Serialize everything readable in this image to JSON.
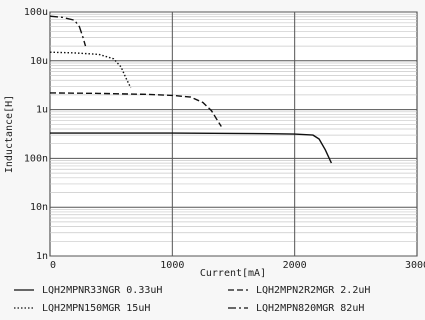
{
  "chart_data": {
    "type": "line",
    "xlabel": "Current[mA]",
    "ylabel": "Inductance[H]",
    "xlim": [
      0,
      3000
    ],
    "ylim": [
      "1n",
      "100u"
    ],
    "y_scale": "log",
    "grid": true,
    "legend_placement": "bottom",
    "x_ticks": [
      "0",
      "1000",
      "2000",
      "3000"
    ],
    "y_ticks": [
      "100u",
      "10u",
      "1u",
      "100n",
      "10n",
      "1n"
    ],
    "series": [
      {
        "name": "LQH2MPNR33NGR 0.33uH",
        "style": "solid",
        "x": [
          0,
          500,
          1000,
          1500,
          1800,
          2000,
          2150,
          2200,
          2250,
          2300
        ],
        "y": [
          3.3e-07,
          3.3e-07,
          3.3e-07,
          3.25e-07,
          3.2e-07,
          3.15e-07,
          3e-07,
          2.5e-07,
          1.5e-07,
          8e-08
        ]
      },
      {
        "name": "LQH2MPN2R2MGR 2.2uH",
        "style": "dashed",
        "x": [
          0,
          400,
          800,
          1000,
          1150,
          1250,
          1320,
          1360,
          1400
        ],
        "y": [
          2.2e-06,
          2.15e-06,
          2.05e-06,
          1.95e-06,
          1.8e-06,
          1.4e-06,
          9.5e-07,
          6.5e-07,
          4.5e-07
        ]
      },
      {
        "name": "LQH2MPN150MGR 15uH",
        "style": "dotted",
        "x": [
          0,
          200,
          400,
          520,
          580,
          620,
          660
        ],
        "y": [
          1.5e-05,
          1.45e-05,
          1.35e-05,
          1.1e-05,
          7.5e-06,
          4.5e-06,
          2.8e-06
        ]
      },
      {
        "name": "LQH2MPN820MGR 82uH",
        "style": "dashdot",
        "x": [
          0,
          100,
          200,
          240,
          270,
          290
        ],
        "y": [
          8.2e-05,
          7.8e-05,
          6.8e-05,
          5e-05,
          3e-05,
          2e-05
        ]
      }
    ]
  }
}
